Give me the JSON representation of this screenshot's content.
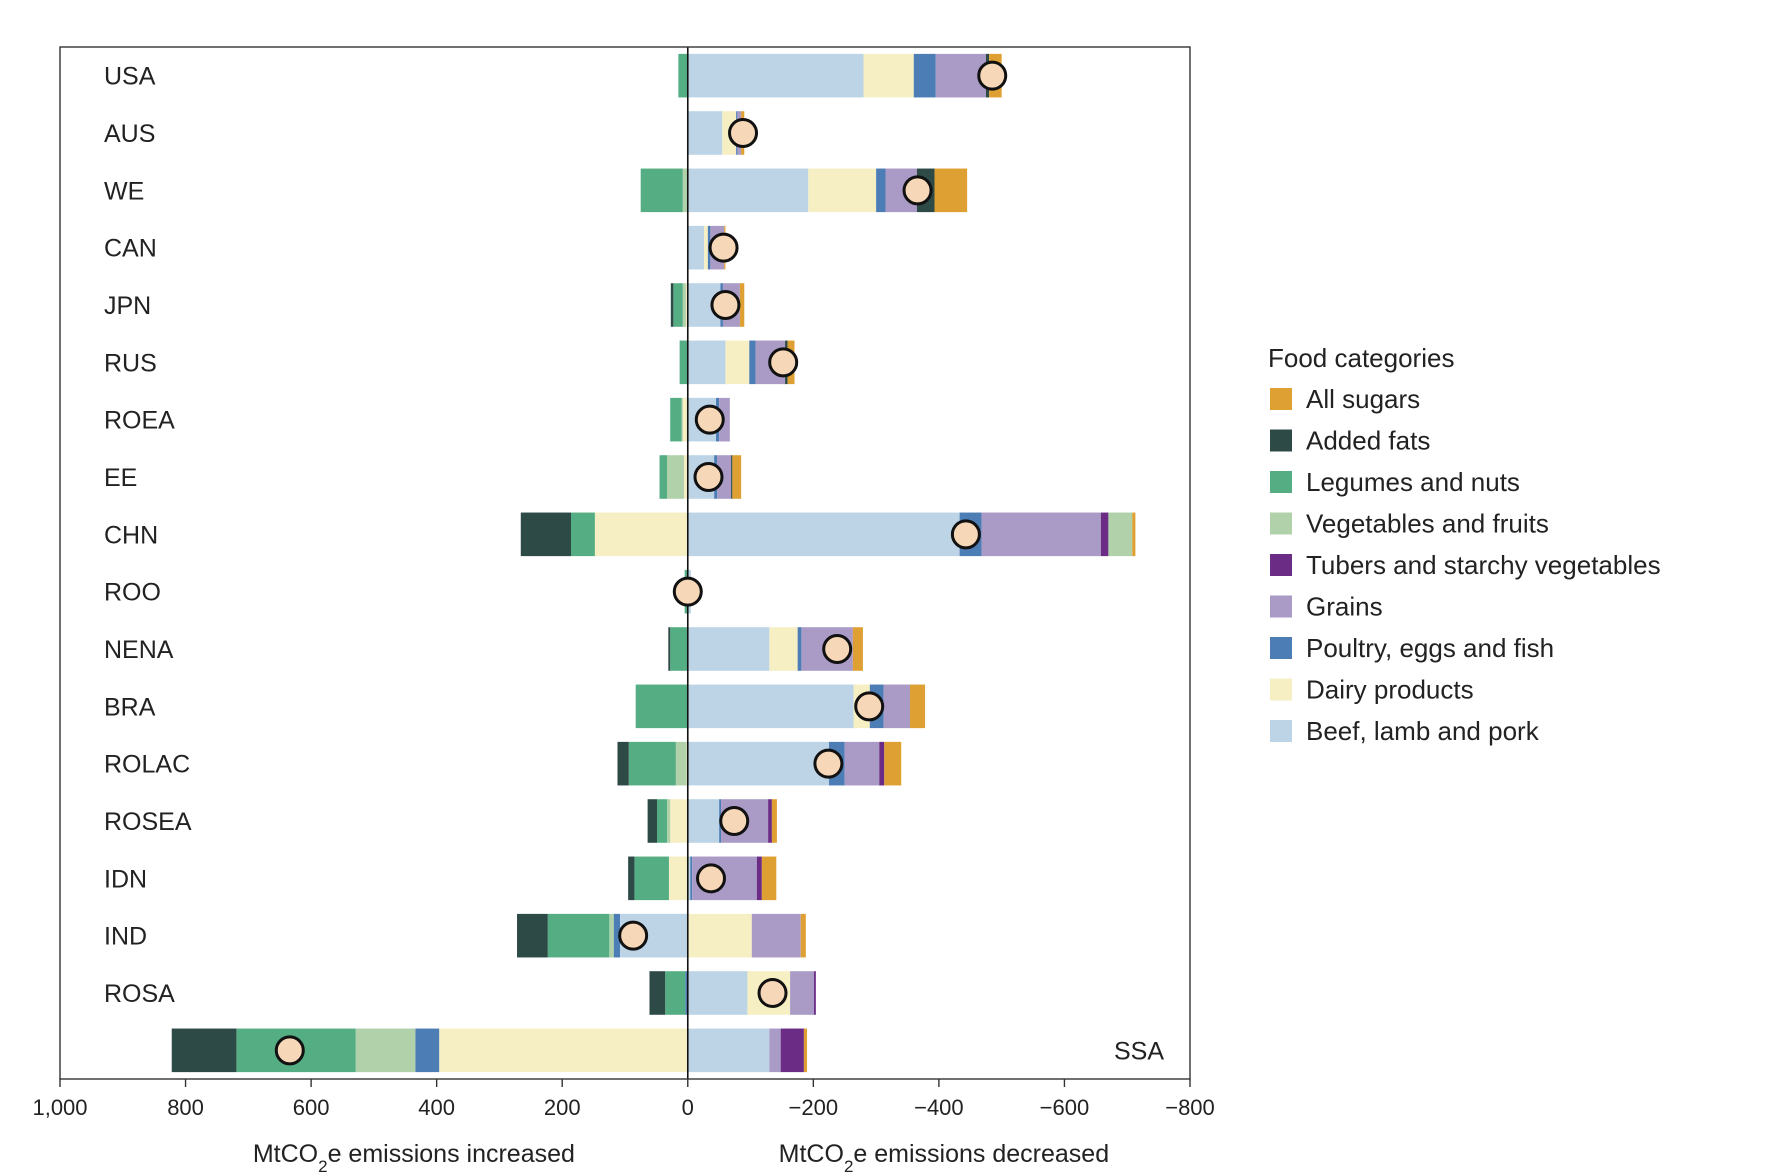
{
  "chart_data": {
    "type": "bar",
    "orientation": "horizontal",
    "stacked": true,
    "xlabel_left": "MtCO2e emissions increased",
    "xlabel_right": "MtCO2e emissions decreased",
    "x_ticks": [
      1000,
      800,
      600,
      400,
      200,
      0,
      -200,
      -400,
      -600,
      -800
    ],
    "x_tick_labels": [
      "1,000",
      "800",
      "600",
      "400",
      "200",
      "0",
      "−200",
      "−400",
      "−600",
      "−800"
    ],
    "xlim": [
      1000,
      -800
    ],
    "legend_title": "Food categories",
    "legend_position": "right",
    "series": [
      {
        "name": "Beef, lamb and pork",
        "color": "#bcd4e6"
      },
      {
        "name": "Dairy products",
        "color": "#f6efc4"
      },
      {
        "name": "Poultry, eggs and fish",
        "color": "#4d7db5"
      },
      {
        "name": "Grains",
        "color": "#aa9ac6"
      },
      {
        "name": "Tubers and starchy vegetables",
        "color": "#6a2c85"
      },
      {
        "name": "Vegetables and fruits",
        "color": "#b0d1a9"
      },
      {
        "name": "Legumes and nuts",
        "color": "#55ad83"
      },
      {
        "name": "Added fats",
        "color": "#2e4a47"
      },
      {
        "name": "All sugars",
        "color": "#dea032"
      }
    ],
    "legend_order": [
      "All sugars",
      "Added fats",
      "Legumes and nuts",
      "Vegetables and fruits",
      "Tubers and starchy vegetables",
      "Grains",
      "Poultry, eggs and fish",
      "Dairy products",
      "Beef, lamb and pork"
    ],
    "net_marker": {
      "fill": "#f6d7b8",
      "stroke": "#111111"
    },
    "regions": [
      {
        "name": "USA",
        "net": -485,
        "segments": {
          "Beef, lamb and pork": -280,
          "Dairy products": -80,
          "Poultry, eggs and fish": -35,
          "Grains": -80,
          "Added fats": -5,
          "All sugars": -20,
          "Legumes and nuts": 15
        }
      },
      {
        "name": "AUS",
        "net": -88,
        "segments": {
          "Beef, lamb and pork": -55,
          "Dairy products": -22,
          "Poultry, eggs and fish": -2,
          "Grains": -6,
          "All sugars": -5
        }
      },
      {
        "name": "WE",
        "net": -366,
        "segments": {
          "Beef, lamb and pork": -192,
          "Dairy products": -108,
          "Poultry, eggs and fish": -15,
          "Grains": -50,
          "Added fats": -28,
          "All sugars": -52,
          "Vegetables and fruits": 8,
          "Legumes and nuts": 67
        }
      },
      {
        "name": "CAN",
        "net": -57,
        "segments": {
          "Beef, lamb and pork": -26,
          "Dairy products": -6,
          "Poultry, eggs and fish": -4,
          "Grains": -22,
          "All sugars": -2
        }
      },
      {
        "name": "JPN",
        "net": -60,
        "segments": {
          "Beef, lamb and pork": -52,
          "Poultry, eggs and fish": -4,
          "Grains": -27,
          "All sugars": -7,
          "Dairy products": 3,
          "Vegetables and fruits": 5,
          "Legumes and nuts": 15,
          "Added fats": 4
        }
      },
      {
        "name": "RUS",
        "net": -152,
        "segments": {
          "Beef, lamb and pork": -60,
          "Dairy products": -38,
          "Poultry, eggs and fish": -10,
          "Grains": -47,
          "Added fats": -4,
          "All sugars": -11,
          "Legumes and nuts": 13
        }
      },
      {
        "name": "ROEA",
        "net": -35,
        "segments": {
          "Beef, lamb and pork": -45,
          "Poultry, eggs and fish": -5,
          "Grains": -17,
          "Dairy products": 8,
          "Vegetables and fruits": 2,
          "Legumes and nuts": 18
        }
      },
      {
        "name": "EE",
        "net": -33,
        "segments": {
          "Beef, lamb and pork": -42,
          "Poultry, eggs and fish": -5,
          "Grains": -22,
          "Added fats": -2,
          "All sugars": -14,
          "Dairy products": 6,
          "Vegetables and fruits": 27,
          "Legumes and nuts": 12
        }
      },
      {
        "name": "CHN",
        "net": -443,
        "segments": {
          "Beef, lamb and pork": -433,
          "Poultry, eggs and fish": -35,
          "Grains": -190,
          "Tubers and starchy vegetables": -12,
          "Vegetables and fruits": -38,
          "All sugars": -5,
          "Dairy products": 148,
          "Legumes and nuts": 38,
          "Added fats": 80
        }
      },
      {
        "name": "ROO",
        "net": 0,
        "segments": {
          "Beef, lamb and pork": -5,
          "Legumes and nuts": 5
        }
      },
      {
        "name": "NENA",
        "net": -238,
        "segments": {
          "Beef, lamb and pork": -130,
          "Dairy products": -45,
          "Poultry, eggs and fish": -6,
          "Grains": -82,
          "All sugars": -16,
          "Legumes and nuts": 28,
          "Added fats": 3
        }
      },
      {
        "name": "BRA",
        "net": -289,
        "segments": {
          "Beef, lamb and pork": -264,
          "Dairy products": -26,
          "Poultry, eggs and fish": -22,
          "Grains": -42,
          "All sugars": -24,
          "Legumes and nuts": 83
        }
      },
      {
        "name": "ROLAC",
        "net": -224,
        "segments": {
          "Beef, lamb and pork": -225,
          "Poultry, eggs and fish": -25,
          "Grains": -55,
          "Tubers and starchy vegetables": -8,
          "All sugars": -27,
          "Dairy products": 2,
          "Vegetables and fruits": 17,
          "Legumes and nuts": 75,
          "Added fats": 18
        }
      },
      {
        "name": "ROSEA",
        "net": -74,
        "segments": {
          "Beef, lamb and pork": -50,
          "Poultry, eggs and fish": -3,
          "Grains": -75,
          "Tubers and starchy vegetables": -6,
          "All sugars": -8,
          "Dairy products": 28,
          "Vegetables and fruits": 5,
          "Legumes and nuts": 16,
          "Added fats": 15
        }
      },
      {
        "name": "IDN",
        "net": -37,
        "segments": {
          "Beef, lamb and pork": -4,
          "Poultry, eggs and fish": -3,
          "Grains": -103,
          "Tubers and starchy vegetables": -8,
          "All sugars": -23,
          "Dairy products": 30,
          "Legumes and nuts": 55,
          "Added fats": 10
        }
      },
      {
        "name": "IND",
        "net": 87,
        "segments": {
          "Dairy products": -102,
          "Grains": -78,
          "All sugars": -8,
          "Beef, lamb and pork": 108,
          "Poultry, eggs and fish": 10,
          "Vegetables and fruits": 7,
          "Legumes and nuts": 98,
          "Added fats": 49
        }
      },
      {
        "name": "ROSA",
        "net": -135,
        "segments": {
          "Beef, lamb and pork": -95,
          "Dairy products": -68,
          "Grains": -38,
          "Tubers and starchy vegetables": -3,
          "Poultry, eggs and fish": 4,
          "Legumes and nuts": 32,
          "Added fats": 25
        }
      },
      {
        "name": "SSA",
        "net": 634,
        "segments": {
          "Beef, lamb and pork": -130,
          "Grains": -18,
          "Tubers and starchy vegetables": -37,
          "All sugars": -5,
          "Dairy products": 396,
          "Poultry, eggs and fish": 38,
          "Vegetables and fruits": 95,
          "Legumes and nuts": 190,
          "Added fats": 103
        }
      }
    ]
  }
}
